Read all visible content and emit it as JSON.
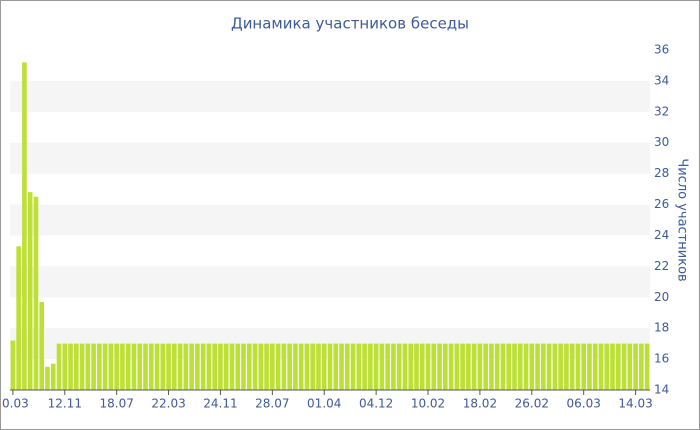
{
  "chart_data": {
    "type": "bar",
    "title": "Динамика участников беседы",
    "y_label": "Число участников",
    "categories": [
      "0.03",
      null,
      null,
      null,
      null,
      null,
      null,
      null,
      null,
      "12.11",
      null,
      null,
      null,
      null,
      null,
      null,
      null,
      null,
      "18.07",
      null,
      null,
      null,
      null,
      null,
      null,
      null,
      null,
      "22.03",
      null,
      null,
      null,
      null,
      null,
      null,
      null,
      null,
      "24.11",
      null,
      null,
      null,
      null,
      null,
      null,
      null,
      null,
      "28.07",
      null,
      null,
      null,
      null,
      null,
      null,
      null,
      null,
      "01.04",
      null,
      null,
      null,
      null,
      null,
      null,
      null,
      null,
      "04.12",
      null,
      null,
      null,
      null,
      null,
      null,
      null,
      null,
      "10.02",
      null,
      null,
      null,
      null,
      null,
      null,
      null,
      null,
      "18.02",
      null,
      null,
      null,
      null,
      null,
      null,
      null,
      null,
      "26.02",
      null,
      null,
      null,
      null,
      null,
      null,
      null,
      null,
      "06.03",
      null,
      null,
      null,
      null,
      null,
      null,
      null,
      null,
      "14.03",
      null,
      null
    ],
    "values": [
      17.2,
      23.3,
      35.2,
      26.8,
      26.5,
      19.7,
      15.5,
      15.7,
      17,
      17,
      17,
      17,
      17,
      17,
      17,
      17,
      17,
      17,
      17,
      17,
      17,
      17,
      17,
      17,
      17,
      17,
      17,
      17,
      17,
      17,
      17,
      17,
      17,
      17,
      17,
      17,
      17,
      17,
      17,
      17,
      17,
      17,
      17,
      17,
      17,
      17,
      17,
      17,
      17,
      17,
      17,
      17,
      17,
      17,
      17,
      17,
      17,
      17,
      17,
      17,
      17,
      17,
      17,
      17,
      17,
      17,
      17,
      17,
      17,
      17,
      17,
      17,
      17,
      17,
      17,
      17,
      17,
      17,
      17,
      17,
      17,
      17,
      17,
      17,
      17,
      17,
      17,
      17,
      17,
      17,
      17,
      17,
      17,
      17,
      17,
      17,
      17,
      17,
      17,
      17,
      17,
      17,
      17,
      17,
      17,
      17,
      17,
      17,
      17,
      17,
      17
    ],
    "color": "#bde034",
    "ylim": [
      14,
      36
    ],
    "yticks": [
      14,
      16,
      18,
      20,
      22,
      24,
      26,
      28,
      30,
      32,
      34,
      36
    ],
    "grid": true
  }
}
